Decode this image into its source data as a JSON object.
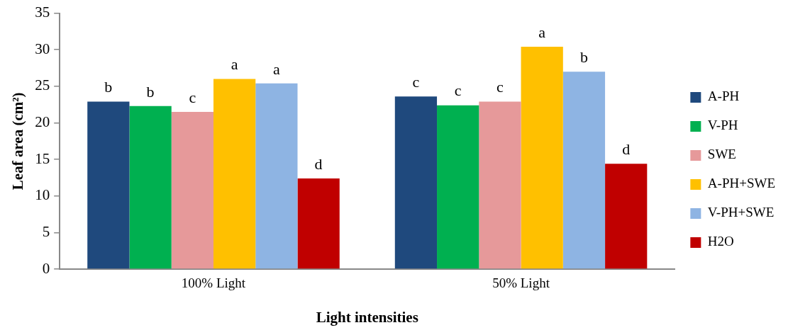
{
  "chart_data": {
    "type": "bar",
    "xlabel": "Light intensities",
    "ylabel": "Leaf area (cm²)",
    "categories": [
      "100% Light",
      "50% Light"
    ],
    "series": [
      {
        "name": "A-PH",
        "color": "#1f497d",
        "values": [
          22.9,
          23.6
        ],
        "value_labels": [
          "b",
          "c"
        ]
      },
      {
        "name": "V-PH",
        "color": "#00b050",
        "values": [
          22.3,
          22.4
        ],
        "value_labels": [
          "b",
          "c"
        ]
      },
      {
        "name": "SWE",
        "color": "#e6999a",
        "values": [
          21.5,
          22.9
        ],
        "value_labels": [
          "c",
          "c"
        ]
      },
      {
        "name": "A-PH+SWE",
        "color": "#ffc000",
        "values": [
          26.0,
          30.4
        ],
        "value_labels": [
          "a",
          "a"
        ]
      },
      {
        "name": "V-PH+SWE",
        "color": "#8eb4e3",
        "values": [
          25.4,
          27.0
        ],
        "value_labels": [
          "a",
          "b"
        ]
      },
      {
        "name": "H2O",
        "color": "#c00000",
        "values": [
          12.4,
          14.4
        ],
        "value_labels": [
          "d",
          "d"
        ]
      }
    ],
    "ylim": [
      0,
      35
    ],
    "yticks": [
      0,
      5,
      10,
      15,
      20,
      25,
      30,
      35
    ],
    "grid": false,
    "legend": "right"
  }
}
